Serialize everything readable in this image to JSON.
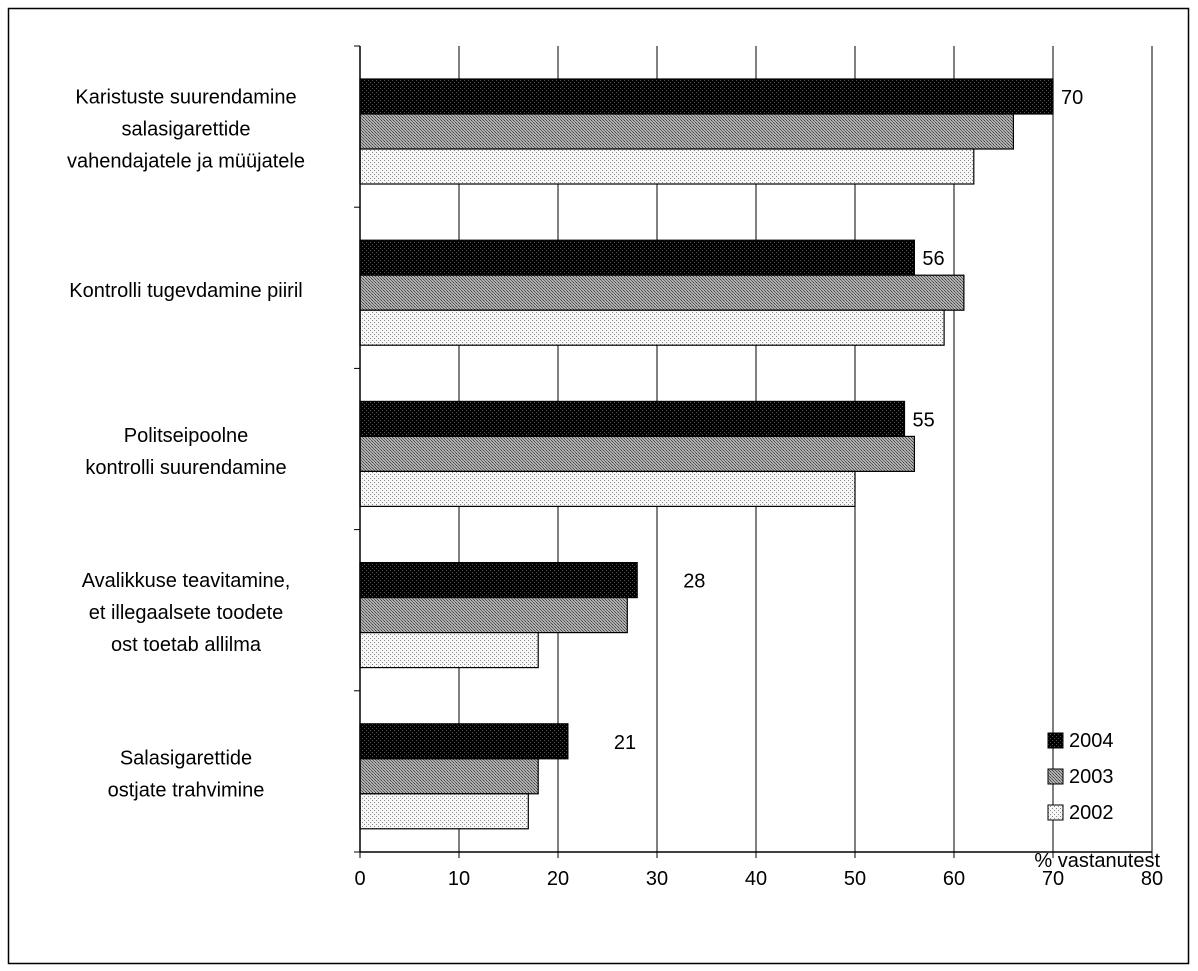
{
  "chart_data": {
    "type": "bar",
    "orientation": "horizontal",
    "categories": [
      [
        "Karistuste suurendamine",
        "salasigarettide",
        "vahendajatele ja müüjatele"
      ],
      [
        "Kontrolli tugevdamine piiril"
      ],
      [
        "Politseipoolne",
        "kontrolli suurendamine"
      ],
      [
        "Avalikkuse teavitamine,",
        "et illegaalsete toodete",
        "ost toetab allilma"
      ],
      [
        "Salasigarettide",
        "ostjate trahvimine"
      ]
    ],
    "series": [
      {
        "name": "2004",
        "values": [
          70,
          56,
          55,
          28,
          21
        ],
        "labels": [
          "70",
          "56",
          "55",
          "28",
          "21"
        ]
      },
      {
        "name": "2003",
        "values": [
          66,
          61,
          56,
          27,
          18
        ]
      },
      {
        "name": "2002",
        "values": [
          62,
          59,
          50,
          18,
          17
        ]
      }
    ],
    "xlabel": "% vastanutest",
    "ylabel": "",
    "xlim": [
      0,
      80
    ],
    "xticks": [
      "0",
      "10",
      "20",
      "30",
      "40",
      "50",
      "60",
      "70",
      "80"
    ],
    "grid": "vertical",
    "legend_position": "bottom-right",
    "colors": {
      "2004": "#000000",
      "2003": "#8c8c8c",
      "2002": "#e6e6e6",
      "gridline": "#000000",
      "frame": "#000000"
    }
  }
}
